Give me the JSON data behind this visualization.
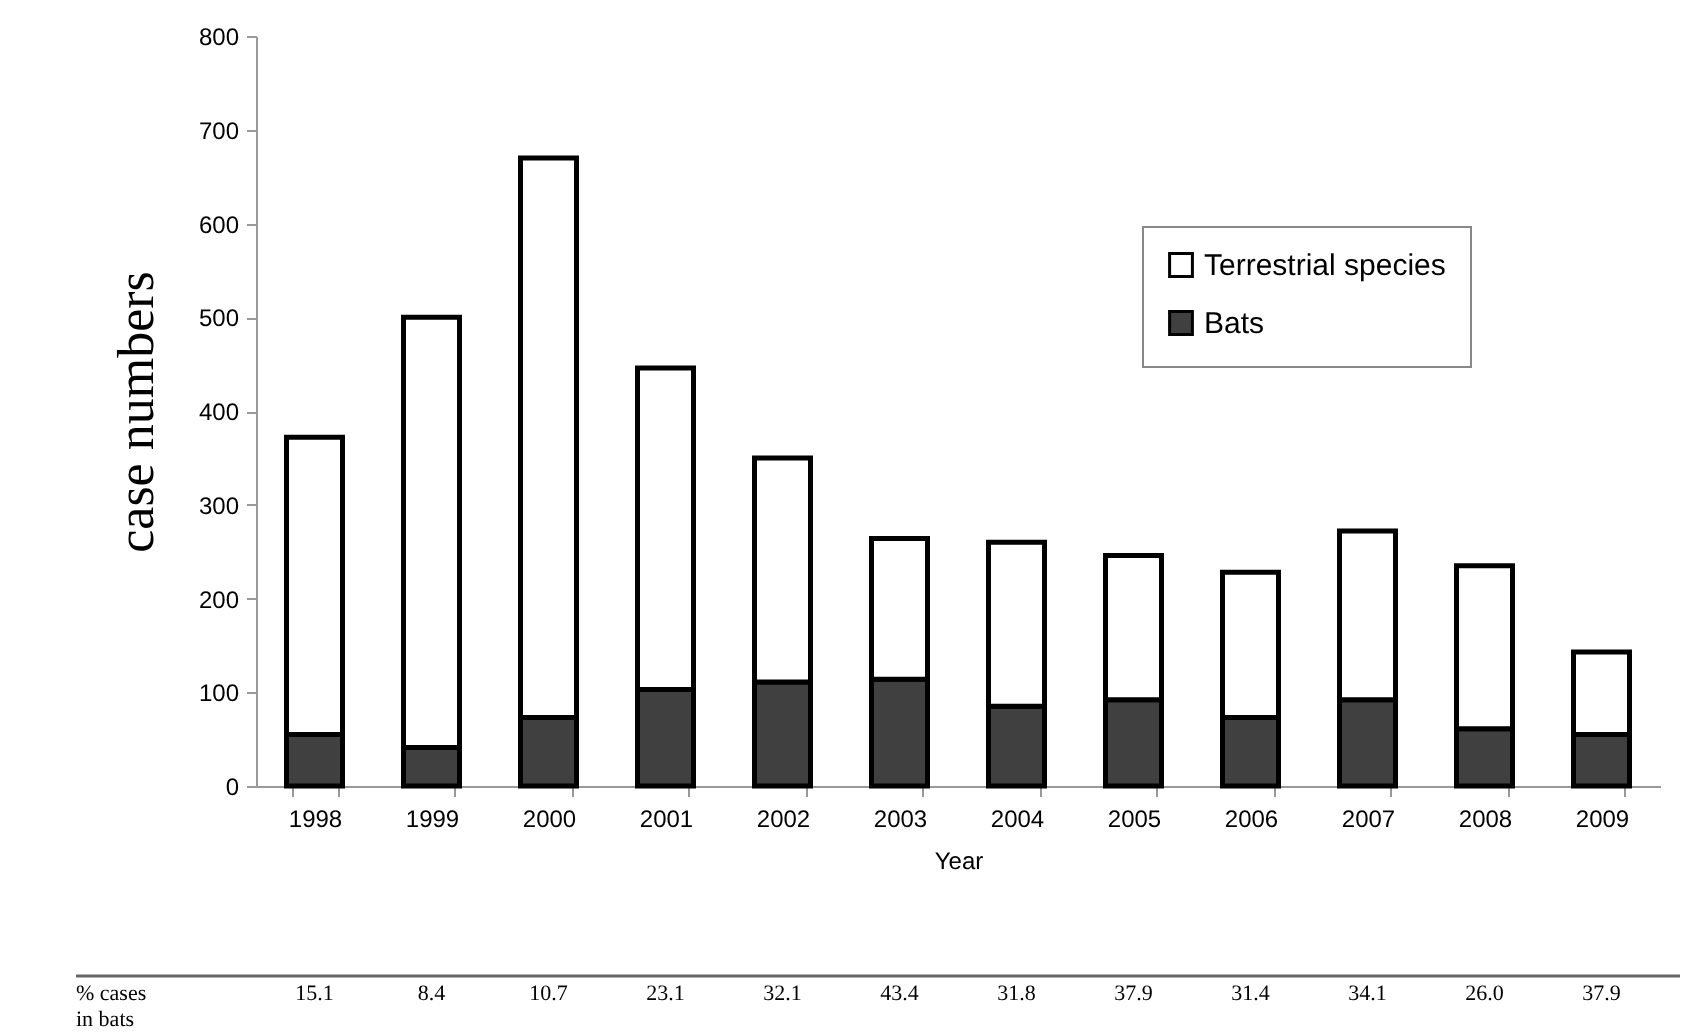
{
  "chart_data": {
    "type": "bar",
    "stacked": true,
    "xlabel": "Year",
    "ylabel": "case numbers",
    "categories": [
      "1998",
      "1999",
      "2000",
      "2001",
      "2002",
      "2003",
      "2004",
      "2005",
      "2006",
      "2007",
      "2008",
      "2009"
    ],
    "series": [
      {
        "name": "Bats",
        "color": "#404040",
        "values": [
          55,
          41,
          73,
          103,
          111,
          114,
          85,
          92,
          73,
          92,
          61,
          55
        ]
      },
      {
        "name": "Terrestrial species",
        "color": "#ffffff",
        "values": [
          317,
          459,
          597,
          343,
          239,
          150,
          175,
          154,
          155,
          180,
          174,
          88
        ]
      }
    ],
    "ylim": [
      0,
      800
    ],
    "yticks": [
      0,
      100,
      200,
      300,
      400,
      500,
      600,
      700,
      800
    ],
    "grid": false,
    "legend": "top right",
    "annotations": [
      "% cases\nin bats",
      "15.1",
      "8.4",
      "10.7",
      "23.1",
      "32.1",
      "43.4",
      "31.8",
      "37.9",
      "31.4",
      "34.1",
      "26.0",
      "37.9"
    ]
  }
}
